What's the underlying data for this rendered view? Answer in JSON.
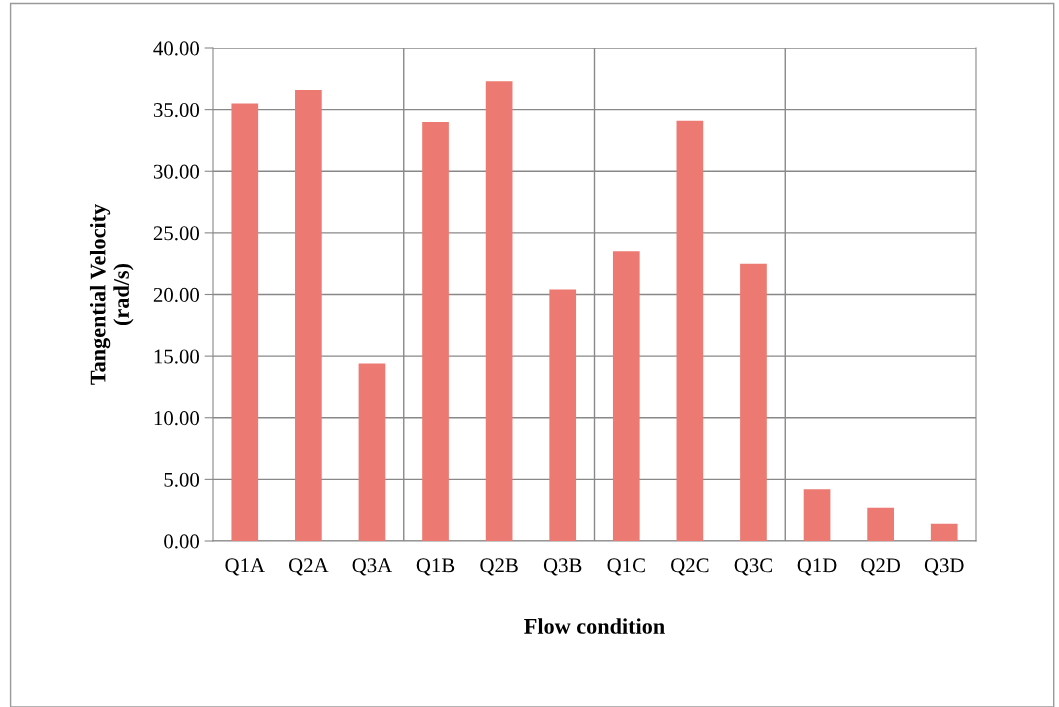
{
  "chart_data": {
    "type": "bar",
    "xlabel": "Flow condition",
    "ylabel": "Tangential Velocity\n(rad/s)",
    "categories": [
      "Q1A",
      "Q2A",
      "Q3A",
      "Q1B",
      "Q2B",
      "Q3B",
      "Q1C",
      "Q2C",
      "Q3C",
      "Q1D",
      "Q2D",
      "Q3D"
    ],
    "values": [
      35.5,
      36.6,
      14.4,
      34.0,
      37.3,
      20.4,
      23.5,
      34.1,
      22.5,
      4.2,
      2.7,
      1.4
    ],
    "color": "#ec7a72",
    "ylim": [
      0,
      40
    ],
    "yticks": [
      {
        "value": 0,
        "label": "0.00"
      },
      {
        "value": 5,
        "label": "5.00"
      },
      {
        "value": 10,
        "label": "10.00"
      },
      {
        "value": 15,
        "label": "15.00"
      },
      {
        "value": 20,
        "label": "20.00"
      },
      {
        "value": 25,
        "label": "25.00"
      },
      {
        "value": 30,
        "label": "30.00"
      },
      {
        "value": 35,
        "label": "35.00"
      },
      {
        "value": 40,
        "label": "40.00"
      }
    ],
    "grid": true,
    "legend": false
  }
}
